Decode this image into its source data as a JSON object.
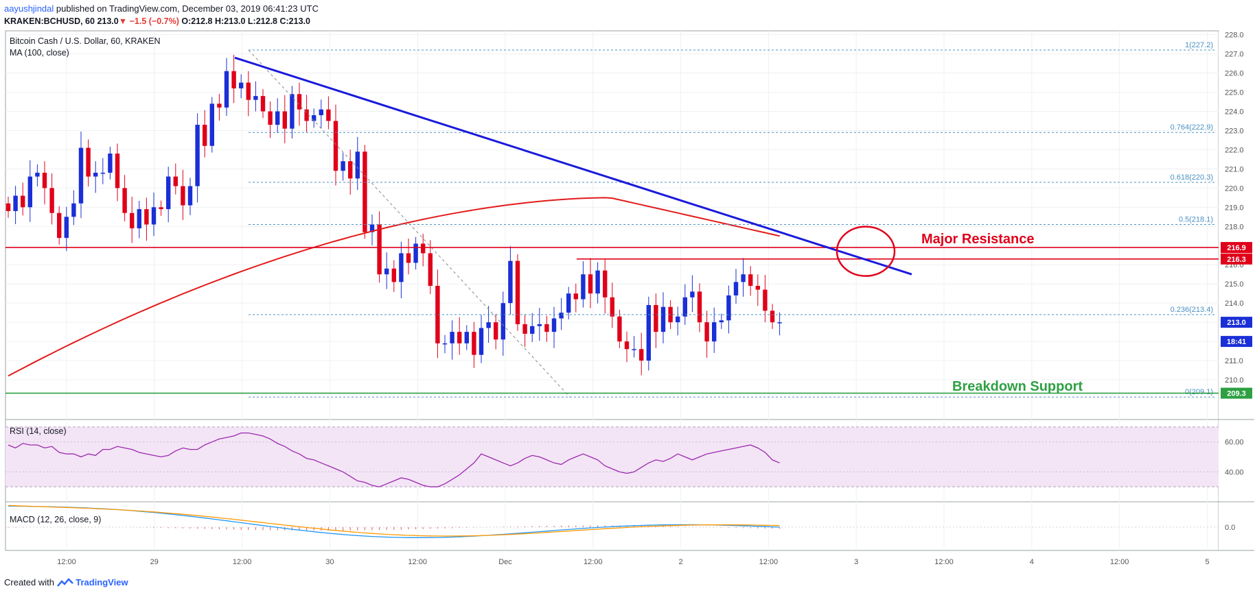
{
  "header": {
    "author": "aayushjindal",
    "published": "published on TradingView.com, December 03, 2019 06:41:23 UTC",
    "ticker": "KRAKEN:BCHUSD, 60",
    "last": "213.0",
    "change": "−1.5 (−0.7%)",
    "ohlc": "O:212.8 H:213.0 L:212.8 C:213.0"
  },
  "footer": {
    "created": "Created with",
    "brand": "TradingView",
    "logo_icon": "tradingview-logo-icon"
  },
  "colors": {
    "up": "#1a2fd6",
    "down": "#e0001a",
    "ma": "#e31a1a",
    "trend": "#1a1adb",
    "support": "#2ea043",
    "fib": "#4a90c2",
    "rsi": "#9c27b0",
    "macd": "#2196f3",
    "signal": "#ff9800"
  },
  "chart_data": [
    {
      "type": "candlestick",
      "title": "Bitcoin Cash / U.S. Dollar, 60, KRAKEN",
      "indicator_label": "MA (100, close)",
      "x_ticks": [
        "12:00",
        "29",
        "12:00",
        "30",
        "12:00",
        "Dec",
        "12:00",
        "2",
        "12:00",
        "3",
        "12:00",
        "4",
        "12:00",
        "5"
      ],
      "ylim": [
        209,
        228.2
      ],
      "y_ticks": [
        210,
        211,
        212,
        213,
        214,
        215,
        216,
        217,
        218,
        219,
        220,
        221,
        222,
        223,
        224,
        225,
        226,
        227,
        228
      ],
      "y_tick_labels": [
        "210.0",
        "211.0",
        "212.0",
        "213.0",
        "214.0",
        "215.0",
        "216.0",
        "217.0",
        "218.0",
        "219.0",
        "220.0",
        "221.0",
        "222.0",
        "223.0",
        "224.0",
        "225.0",
        "226.0",
        "227.0",
        "228.0"
      ],
      "close_series": [
        218.8,
        219.6,
        219.0,
        220.6,
        220.8,
        220.0,
        218.7,
        217.4,
        218.5,
        219.2,
        222.1,
        220.6,
        220.8,
        220.8,
        221.8,
        220.0,
        218.7,
        217.9,
        218.9,
        218.1,
        219.0,
        218.9,
        220.6,
        220.1,
        219.1,
        220.1,
        223.3,
        222.2,
        224.4,
        224.2,
        226.1,
        225.2,
        225.5,
        224.6,
        224.8,
        224.0,
        223.3,
        224.0,
        223.1,
        224.9,
        224.1,
        223.5,
        223.8,
        224.1,
        223.5,
        220.9,
        221.4,
        220.5,
        221.9,
        217.7,
        218.1,
        215.5,
        215.8,
        215.1,
        216.6,
        216.1,
        217.1,
        216.6,
        214.9,
        211.9,
        211.9,
        212.5,
        211.9,
        212.5,
        211.3,
        212.7,
        213.0,
        212.1,
        214.0,
        216.2,
        212.9,
        212.4,
        212.8,
        212.9,
        212.5,
        213.2,
        213.5,
        214.5,
        214.2,
        215.5,
        214.5,
        215.7,
        214.3,
        213.3,
        212.0,
        211.6,
        211.6,
        211.0,
        213.9,
        212.5,
        213.8,
        213.0,
        213.3,
        214.3,
        214.6,
        213.0,
        212.0,
        213.0,
        213.1,
        214.4,
        215.1,
        215.5,
        214.9,
        214.7,
        213.6,
        213.0,
        213.0
      ],
      "ma100_ends": [
        210.2,
        217.5
      ],
      "ma100_peak": 219.5,
      "fib_levels": [
        {
          "ratio": "1",
          "value": 227.2,
          "label": "1(227.2)"
        },
        {
          "ratio": "0.764",
          "value": 222.9,
          "label": "0.764(222.9)"
        },
        {
          "ratio": "0.618",
          "value": 220.3,
          "label": "0.618(220.3)"
        },
        {
          "ratio": "0.5",
          "value": 218.1,
          "label": "0.5(218.1)"
        },
        {
          "ratio": "0.236",
          "value": 213.4,
          "label": "0.236(213.4)"
        },
        {
          "ratio": "0",
          "value": 209.1,
          "label": "0(209.1)"
        }
      ],
      "horizontal_lines": [
        216.9,
        216.3,
        209.3
      ],
      "trendline": [
        226.8,
        215.5
      ],
      "price_tags": [
        {
          "value": 216.9,
          "label": "216.9",
          "color": "#e0001a"
        },
        {
          "value": 216.3,
          "label": "216.3",
          "color": "#e0001a"
        },
        {
          "value": 213.0,
          "label": "213.0",
          "color": "#1a2fd6"
        },
        {
          "value": 212.0,
          "label": "18:41",
          "color": "#1a2fd6"
        },
        {
          "value": 209.3,
          "label": "209.3",
          "color": "#2ea043"
        }
      ],
      "annotations": [
        {
          "text": "Major Resistance",
          "color": "#e0001a"
        },
        {
          "text": "Breakdown Support",
          "color": "#2ea043"
        }
      ]
    },
    {
      "type": "line",
      "title": "RSI (14, close)",
      "ylim": [
        20,
        75
      ],
      "y_ticks": [
        40,
        60
      ],
      "y_tick_labels": [
        "40.00",
        "60.00"
      ],
      "band": [
        30,
        70
      ],
      "values": [
        58,
        56,
        59,
        58,
        58,
        56,
        57,
        53,
        52,
        52,
        50,
        52,
        51,
        55,
        55,
        57,
        56,
        55,
        53,
        52,
        51,
        50,
        51,
        54,
        56,
        55,
        55,
        58,
        60,
        62,
        63,
        64,
        66,
        66,
        65,
        64,
        62,
        59,
        57,
        54,
        52,
        49,
        48,
        46,
        44,
        42,
        40,
        37,
        34,
        33,
        31,
        30,
        32,
        34,
        36,
        35,
        33,
        31,
        30,
        30,
        32,
        35,
        38,
        42,
        46,
        52,
        50,
        48,
        46,
        44,
        46,
        49,
        51,
        50,
        48,
        46,
        45,
        48,
        50,
        52,
        50,
        48,
        44,
        42,
        40,
        39,
        40,
        43,
        46,
        48,
        47,
        49,
        52,
        50,
        48,
        50,
        52,
        53,
        54,
        55,
        56,
        57,
        58,
        56,
        53,
        48,
        46
      ]
    },
    {
      "type": "line",
      "title": "MACD (12, 26, close, 9)",
      "ylim": [
        -0.55,
        0.6
      ],
      "y_ticks": [
        0
      ],
      "y_tick_labels": [
        "0.0"
      ],
      "macd_ends": [
        0.5,
        0.0
      ],
      "signal_ends": [
        0.55,
        0.0
      ]
    }
  ]
}
